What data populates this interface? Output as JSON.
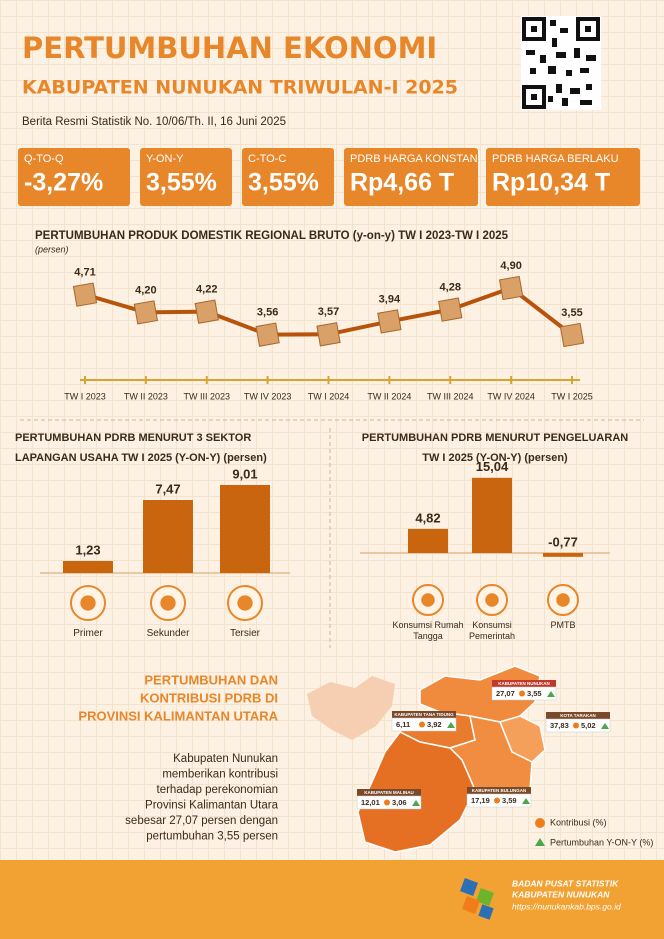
{
  "header": {
    "title": "PERTUMBUHAN EKONOMI",
    "subtitle": "KABUPATEN NUNUKAN TRIWULAN-I 2025",
    "release": "Berita Resmi Statistik No. 10/06/Th. II, 16 Juni 2025"
  },
  "kpis": [
    {
      "label": "Q-TO-Q",
      "value": "-3,27%"
    },
    {
      "label": "Y-ON-Y",
      "value": "3,55%"
    },
    {
      "label": "C-TO-C",
      "value": "3,55%"
    },
    {
      "label": "PDRB HARGA KONSTAN",
      "value": "Rp4,66 T"
    },
    {
      "label": "PDRB HARGA BERLAKU",
      "value": "Rp10,34 T"
    }
  ],
  "chart_data": [
    {
      "type": "line",
      "title": "PERTUMBUHAN PRODUK DOMESTIK REGIONAL BRUTO (y-on-y) TW I 2023-TW I 2025",
      "y_label": "(persen)",
      "categories": [
        "TW I 2023",
        "TW II 2023",
        "TW III 2023",
        "TW IV 2023",
        "TW I 2024",
        "TW II 2024",
        "TW III 2024",
        "TW IV 2024",
        "TW I 2025"
      ],
      "values": [
        4.71,
        4.2,
        4.22,
        3.56,
        3.57,
        3.94,
        4.28,
        4.9,
        3.55
      ],
      "value_labels": [
        "4,71",
        "4,20",
        "4,22",
        "3,56",
        "3,57",
        "3,94",
        "4,28",
        "4,90",
        "3,55"
      ],
      "color": "#b8530c"
    },
    {
      "type": "bar",
      "title": [
        "PERTUMBUHAN PDRB MENURUT 3 SEKTOR",
        "LAPANGAN USAHA TW I 2025 (Y-ON-Y) (persen)"
      ],
      "categories": [
        "Primer",
        "Sekunder",
        "Tersier"
      ],
      "values": [
        1.23,
        7.47,
        9.01
      ],
      "value_labels": [
        "1,23",
        "7,47",
        "9,01"
      ],
      "color": "#c9650f"
    },
    {
      "type": "bar",
      "title": [
        "PERTUMBUHAN PDRB MENURUT PENGELUARAN",
        "TW I 2025 (Y-ON-Y) (persen)"
      ],
      "categories": [
        "Konsumsi Rumah Tangga",
        "Konsumsi Pemerintah",
        "PMTB"
      ],
      "values": [
        4.82,
        15.04,
        -0.77
      ],
      "value_labels": [
        "4,82",
        "15,04",
        "-0,77"
      ],
      "color": "#c9650f"
    }
  ],
  "map": {
    "title": [
      "PERTUMBUHAN DAN",
      "KONTRIBUSI PDRB DI",
      "PROVINSI KALIMANTAN UTARA"
    ],
    "text": [
      "Kabupaten Nunukan",
      "memberikan kontribusi",
      "terhadap perekonomian",
      "Provinsi Kalimantan Utara",
      "sebesar 27,07 persen dengan",
      "pertumbuhan  3,55 persen"
    ],
    "regions": [
      {
        "name": "KABUPATEN NUNUKAN",
        "contribution": "27,07",
        "growth": "3,55"
      },
      {
        "name": "KABUPATEN TANA TIDUNG",
        "contribution": "6,11",
        "growth": "3,92"
      },
      {
        "name": "KOTA TARAKAN",
        "contribution": "37,83",
        "growth": "5,02"
      },
      {
        "name": "KABUPATEN BULUNGAN",
        "contribution": "17,19",
        "growth": "3,59"
      },
      {
        "name": "KABUPATEN MALINAU",
        "contribution": "12,01",
        "growth": "3,06"
      }
    ],
    "legend": [
      "Kontribusi (%)",
      "Pertumbuhan Y-ON-Y (%)"
    ]
  },
  "footer": {
    "org": "BADAN PUSAT STATISTIK",
    "unit": "KABUPATEN NUNUKAN",
    "url": "https://nunukankab.bps.go.id"
  }
}
